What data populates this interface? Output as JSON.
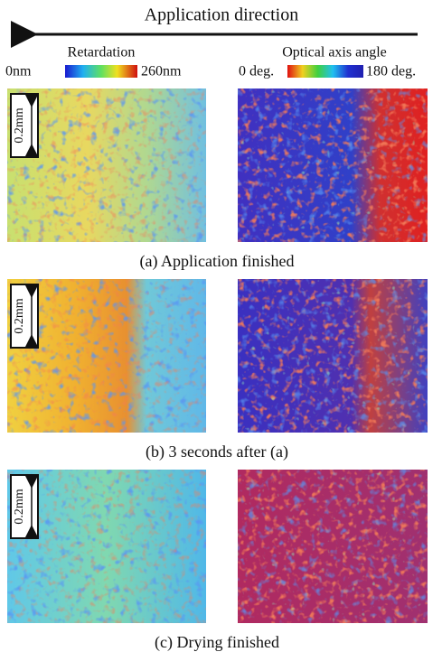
{
  "header": {
    "title": "Application direction"
  },
  "legends": {
    "retardation": {
      "label": "Retardation",
      "min": "0nm",
      "max": "260nm"
    },
    "angle": {
      "label": "Optical axis angle",
      "min": "0 deg.",
      "max": "180 deg."
    }
  },
  "panels": [
    {
      "scale": "0.2mm",
      "caption": "(a) Application finished"
    },
    {
      "scale": "0.2mm",
      "caption": "(b) 3 seconds after (a)"
    },
    {
      "scale": "0.2mm",
      "caption": "(c) Drying finished"
    }
  ]
}
